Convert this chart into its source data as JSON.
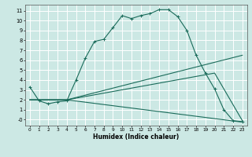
{
  "xlabel": "Humidex (Indice chaleur)",
  "bg_color": "#cce8e4",
  "line_color": "#1a6b5a",
  "grid_color": "#ffffff",
  "xlim": [
    -0.5,
    23.5
  ],
  "ylim": [
    -0.6,
    11.6
  ],
  "xticks": [
    0,
    1,
    2,
    3,
    4,
    5,
    6,
    7,
    8,
    9,
    10,
    11,
    12,
    13,
    14,
    15,
    16,
    17,
    18,
    19,
    20,
    21,
    22,
    23
  ],
  "yticks": [
    0,
    1,
    2,
    3,
    4,
    5,
    6,
    7,
    8,
    9,
    10,
    11
  ],
  "ytick_labels": [
    "-0",
    "1",
    "2",
    "3",
    "4",
    "5",
    "6",
    "7",
    "8",
    "9",
    "10",
    "11"
  ],
  "line1_x": [
    0,
    1,
    2,
    3,
    4,
    5,
    6,
    7,
    8,
    9,
    10,
    11,
    12,
    13,
    14,
    15,
    16,
    17,
    18,
    19,
    20,
    21,
    22,
    23
  ],
  "line1_y": [
    3.3,
    1.9,
    1.6,
    1.8,
    1.9,
    4.0,
    6.2,
    7.9,
    8.1,
    9.3,
    10.5,
    10.2,
    10.5,
    10.7,
    11.1,
    11.1,
    10.4,
    9.0,
    6.5,
    4.7,
    3.1,
    1.0,
    -0.1,
    -0.2
  ],
  "line2_x": [
    0,
    4,
    23
  ],
  "line2_y": [
    2.0,
    2.0,
    6.5
  ],
  "line3_x": [
    0,
    4,
    20,
    23
  ],
  "line3_y": [
    2.0,
    2.0,
    4.7,
    -0.1
  ],
  "line4_x": [
    0,
    4,
    23
  ],
  "line4_y": [
    2.0,
    2.0,
    -0.25
  ]
}
